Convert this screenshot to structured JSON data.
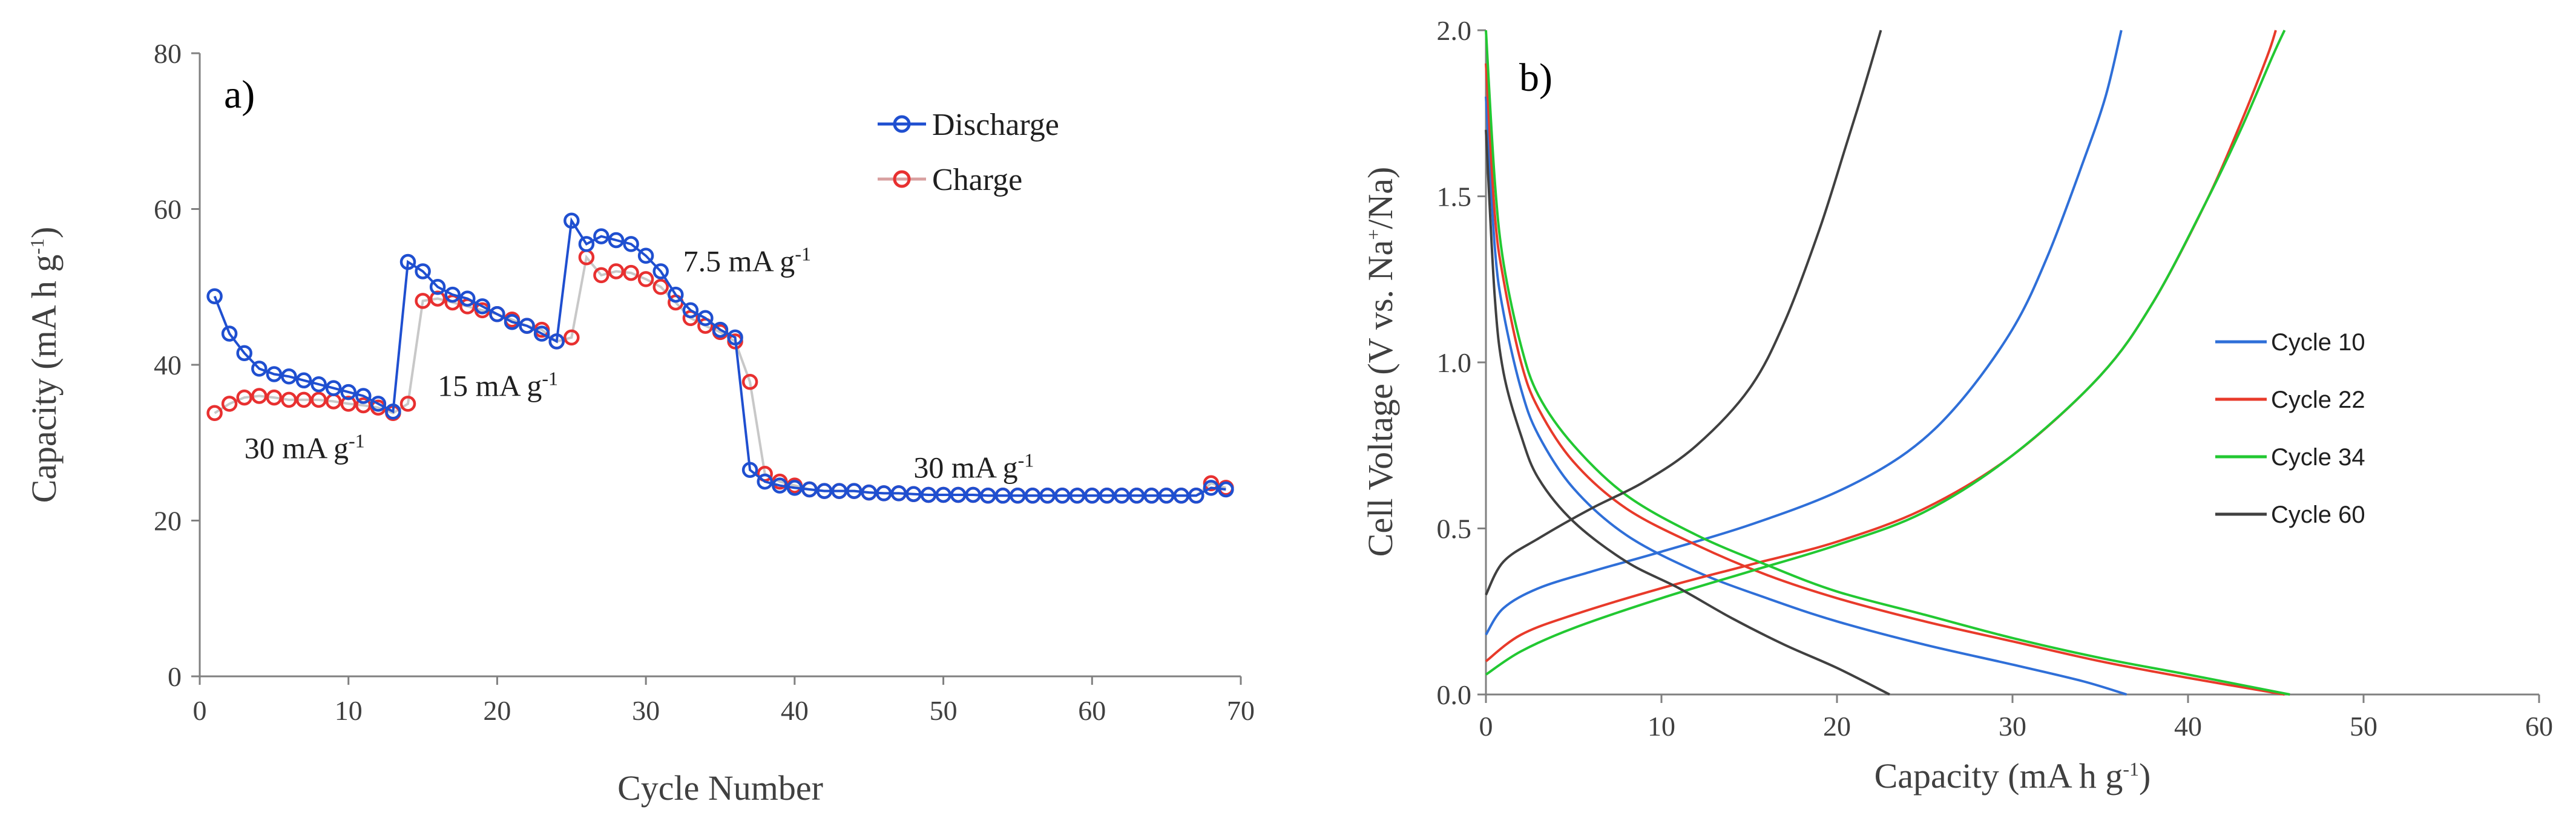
{
  "chart_data": [
    {
      "type": "line",
      "panel_label": "a)",
      "xlabel": "Cycle Number",
      "ylabel_main": "Capacity (mA h g",
      "ylabel_sup": "-1",
      "ylabel_tail": ")",
      "xlim": [
        0,
        70
      ],
      "ylim": [
        0,
        80
      ],
      "xticks": [
        0,
        10,
        20,
        30,
        40,
        50,
        60,
        70
      ],
      "yticks": [
        0,
        20,
        40,
        60,
        80
      ],
      "legend_position": "top-right",
      "annotations": [
        {
          "main": "30 mA g",
          "sup": "-1",
          "x": 3,
          "y": 28
        },
        {
          "main": "15 mA g",
          "sup": "-1",
          "x": 16,
          "y": 36
        },
        {
          "main": "7.5 mA g",
          "sup": "-1",
          "x": 32.5,
          "y": 52
        },
        {
          "main": "30 mA g",
          "sup": "-1",
          "x": 48,
          "y": 25.5
        }
      ],
      "series": [
        {
          "name": "Discharge",
          "color": "#1f4fd0",
          "x": [
            1,
            2,
            3,
            4,
            5,
            6,
            7,
            8,
            9,
            10,
            11,
            12,
            13,
            14,
            15,
            16,
            17,
            18,
            19,
            20,
            21,
            22,
            23,
            24,
            25,
            26,
            27,
            28,
            29,
            30,
            31,
            32,
            33,
            34,
            35,
            36,
            37,
            38,
            39,
            40,
            41,
            42,
            43,
            44,
            45,
            46,
            47,
            48,
            49,
            50,
            51,
            52,
            53,
            54,
            55,
            56,
            57,
            58,
            59,
            60,
            61,
            62,
            63,
            64,
            65,
            66,
            67,
            68,
            69
          ],
          "y": [
            48.8,
            44.0,
            41.5,
            39.5,
            38.8,
            38.5,
            38.0,
            37.5,
            37.0,
            36.5,
            36.0,
            35.0,
            34.0,
            53.2,
            52.0,
            50.0,
            49.0,
            48.5,
            47.5,
            46.5,
            45.5,
            45.0,
            44.0,
            43.0,
            58.5,
            55.5,
            56.5,
            56.0,
            55.5,
            54.0,
            52.0,
            49.0,
            47.0,
            46.0,
            44.5,
            43.5,
            26.5,
            25.0,
            24.5,
            24.2,
            24.0,
            23.8,
            23.8,
            23.8,
            23.6,
            23.5,
            23.5,
            23.4,
            23.3,
            23.3,
            23.3,
            23.3,
            23.2,
            23.2,
            23.2,
            23.2,
            23.2,
            23.2,
            23.2,
            23.2,
            23.2,
            23.2,
            23.2,
            23.2,
            23.2,
            23.2,
            23.2,
            24.2,
            24.0
          ]
        },
        {
          "name": "Charge",
          "color": "#e83030",
          "x": [
            1,
            2,
            3,
            4,
            5,
            6,
            7,
            8,
            9,
            10,
            11,
            12,
            13,
            14,
            15,
            16,
            17,
            18,
            19,
            20,
            21,
            22,
            23,
            24,
            25,
            26,
            27,
            28,
            29,
            30,
            31,
            32,
            33,
            34,
            35,
            36,
            37,
            38,
            39,
            40,
            41,
            42,
            43,
            44,
            45,
            46,
            47,
            48,
            49,
            50,
            51,
            52,
            53,
            54,
            55,
            56,
            57,
            58,
            59,
            60,
            61,
            62,
            63,
            64,
            65,
            66,
            67,
            68,
            69
          ],
          "y": [
            33.8,
            35.0,
            35.8,
            36.0,
            35.8,
            35.5,
            35.5,
            35.5,
            35.3,
            35.0,
            34.8,
            34.5,
            33.8,
            35.0,
            48.2,
            48.5,
            48.0,
            47.5,
            47.0,
            46.5,
            45.8,
            45.0,
            44.5,
            43.0,
            43.5,
            53.8,
            51.5,
            52.0,
            51.8,
            51.0,
            50.0,
            48.0,
            46.0,
            45.0,
            44.2,
            43.0,
            37.8,
            26.0,
            25.0,
            24.5,
            24.0,
            23.8,
            23.8,
            23.8,
            23.6,
            23.5,
            23.5,
            23.4,
            23.3,
            23.3,
            23.3,
            23.3,
            23.2,
            23.2,
            23.2,
            23.2,
            23.2,
            23.2,
            23.2,
            23.2,
            23.2,
            23.2,
            23.2,
            23.2,
            23.2,
            23.2,
            23.2,
            24.8,
            24.2
          ]
        }
      ]
    },
    {
      "type": "line",
      "panel_label": "b)",
      "xlabel_main": "Capacity (mA h g",
      "xlabel_sup": "-1",
      "xlabel_tail": ")",
      "ylabel_main": "Cell Voltage (V vs. Na",
      "ylabel_sup": "+",
      "ylabel_tail": "/Na)",
      "xlim": [
        0,
        60
      ],
      "ylim": [
        0,
        2.0
      ],
      "xticks": [
        0,
        10,
        20,
        30,
        40,
        50,
        60
      ],
      "xtick_labels": [
        "0",
        "10",
        "20",
        "30",
        "40",
        "50",
        "60"
      ],
      "yticks": [
        0,
        0.5,
        1.0,
        1.5,
        2.0
      ],
      "ytick_labels": [
        "0.0",
        "0.5",
        "1.0",
        "1.5",
        "2.0"
      ],
      "legend_position": "right",
      "series": [
        {
          "name": "Cycle 10",
          "color": "#2f6fd8",
          "discharge": [
            [
              0,
              1.8
            ],
            [
              0.5,
              1.35
            ],
            [
              1,
              1.15
            ],
            [
              2,
              0.92
            ],
            [
              3,
              0.78
            ],
            [
              5,
              0.62
            ],
            [
              8,
              0.48
            ],
            [
              12,
              0.37
            ],
            [
              16,
              0.29
            ],
            [
              20,
              0.22
            ],
            [
              25,
              0.15
            ],
            [
              30,
              0.09
            ],
            [
              34,
              0.04
            ],
            [
              36.5,
              0.0
            ]
          ],
          "charge": [
            [
              0,
              0.18
            ],
            [
              1,
              0.26
            ],
            [
              3,
              0.32
            ],
            [
              6,
              0.37
            ],
            [
              10,
              0.43
            ],
            [
              15,
              0.51
            ],
            [
              20,
              0.61
            ],
            [
              24,
              0.73
            ],
            [
              27,
              0.88
            ],
            [
              30,
              1.1
            ],
            [
              32,
              1.32
            ],
            [
              34,
              1.6
            ],
            [
              35.3,
              1.8
            ],
            [
              36.2,
              2.0
            ]
          ]
        },
        {
          "name": "Cycle 22",
          "color": "#e83a2a",
          "discharge": [
            [
              0,
              1.9
            ],
            [
              0.5,
              1.45
            ],
            [
              1,
              1.25
            ],
            [
              2,
              1.0
            ],
            [
              3,
              0.86
            ],
            [
              5,
              0.7
            ],
            [
              8,
              0.56
            ],
            [
              12,
              0.45
            ],
            [
              16,
              0.36
            ],
            [
              20,
              0.29
            ],
            [
              25,
              0.22
            ],
            [
              30,
              0.16
            ],
            [
              35,
              0.1
            ],
            [
              40,
              0.05
            ],
            [
              45.5,
              0.0
            ]
          ],
          "charge": [
            [
              0,
              0.1
            ],
            [
              2,
              0.18
            ],
            [
              5,
              0.24
            ],
            [
              10,
              0.32
            ],
            [
              15,
              0.39
            ],
            [
              20,
              0.46
            ],
            [
              25,
              0.56
            ],
            [
              30,
              0.72
            ],
            [
              35,
              0.96
            ],
            [
              38,
              1.18
            ],
            [
              41,
              1.48
            ],
            [
              43,
              1.72
            ],
            [
              44.5,
              1.92
            ],
            [
              45,
              2.0
            ]
          ]
        },
        {
          "name": "Cycle 34",
          "color": "#22c832",
          "discharge": [
            [
              0,
              2.0
            ],
            [
              0.5,
              1.55
            ],
            [
              1,
              1.3
            ],
            [
              2,
              1.05
            ],
            [
              3,
              0.9
            ],
            [
              5,
              0.75
            ],
            [
              8,
              0.6
            ],
            [
              12,
              0.48
            ],
            [
              16,
              0.39
            ],
            [
              20,
              0.31
            ],
            [
              25,
              0.24
            ],
            [
              30,
              0.17
            ],
            [
              35,
              0.11
            ],
            [
              40,
              0.06
            ],
            [
              45.8,
              0.0
            ]
          ],
          "charge": [
            [
              0,
              0.06
            ],
            [
              2,
              0.13
            ],
            [
              5,
              0.2
            ],
            [
              10,
              0.29
            ],
            [
              15,
              0.37
            ],
            [
              20,
              0.45
            ],
            [
              25,
              0.55
            ],
            [
              30,
              0.72
            ],
            [
              35,
              0.96
            ],
            [
              38,
              1.18
            ],
            [
              41,
              1.48
            ],
            [
              43,
              1.7
            ],
            [
              44.8,
              1.92
            ],
            [
              45.5,
              2.0
            ]
          ]
        },
        {
          "name": "Cycle 60",
          "color": "#404040",
          "discharge": [
            [
              0,
              1.7
            ],
            [
              0.5,
              1.2
            ],
            [
              1,
              0.97
            ],
            [
              2,
              0.78
            ],
            [
              3,
              0.65
            ],
            [
              5,
              0.52
            ],
            [
              8,
              0.4
            ],
            [
              11,
              0.32
            ],
            [
              14,
              0.23
            ],
            [
              17,
              0.15
            ],
            [
              20,
              0.08
            ],
            [
              23,
              0.0
            ]
          ],
          "charge": [
            [
              0,
              0.3
            ],
            [
              1,
              0.4
            ],
            [
              3,
              0.47
            ],
            [
              6,
              0.56
            ],
            [
              9,
              0.64
            ],
            [
              12,
              0.75
            ],
            [
              15,
              0.92
            ],
            [
              17,
              1.12
            ],
            [
              19,
              1.4
            ],
            [
              20.5,
              1.65
            ],
            [
              21.5,
              1.82
            ],
            [
              22.5,
              2.0
            ]
          ]
        }
      ]
    }
  ]
}
